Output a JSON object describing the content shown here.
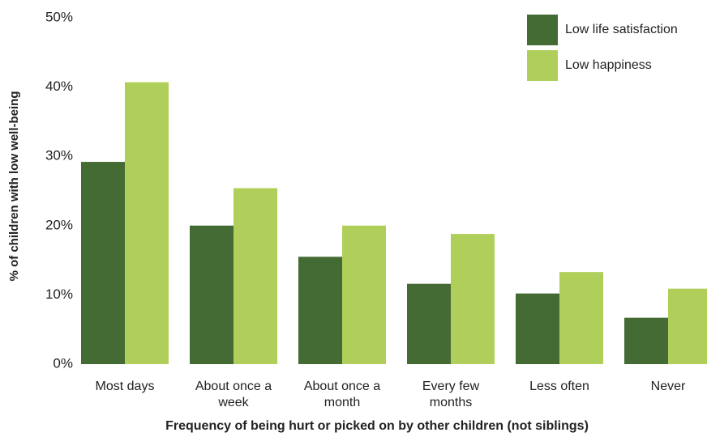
{
  "chart_data": {
    "type": "bar",
    "x_label": "Frequency of being hurt or picked on by other children (not siblings)",
    "y_label": "% of children with low well-being",
    "categories": [
      "Most days",
      "About once a week",
      "About once a month",
      "Every few months",
      "Less often",
      "Never"
    ],
    "series": [
      {
        "name": "Low life satisfaction",
        "color": "#456b35",
        "values": [
          29.2,
          20.0,
          15.5,
          11.6,
          10.2,
          6.7
        ]
      },
      {
        "name": "Low happiness",
        "color": "#b0cf5a",
        "values": [
          40.7,
          25.4,
          20.0,
          18.8,
          13.3,
          10.9
        ]
      }
    ],
    "ylim": [
      0,
      50
    ],
    "yticks": [
      {
        "value": 0,
        "label": "0%"
      },
      {
        "value": 10,
        "label": "10%"
      },
      {
        "value": 20,
        "label": "20%"
      },
      {
        "value": 30,
        "label": "30%"
      },
      {
        "value": 40,
        "label": "40%"
      },
      {
        "value": 50,
        "label": "50%"
      }
    ],
    "grid": false,
    "legend": "top-right"
  }
}
